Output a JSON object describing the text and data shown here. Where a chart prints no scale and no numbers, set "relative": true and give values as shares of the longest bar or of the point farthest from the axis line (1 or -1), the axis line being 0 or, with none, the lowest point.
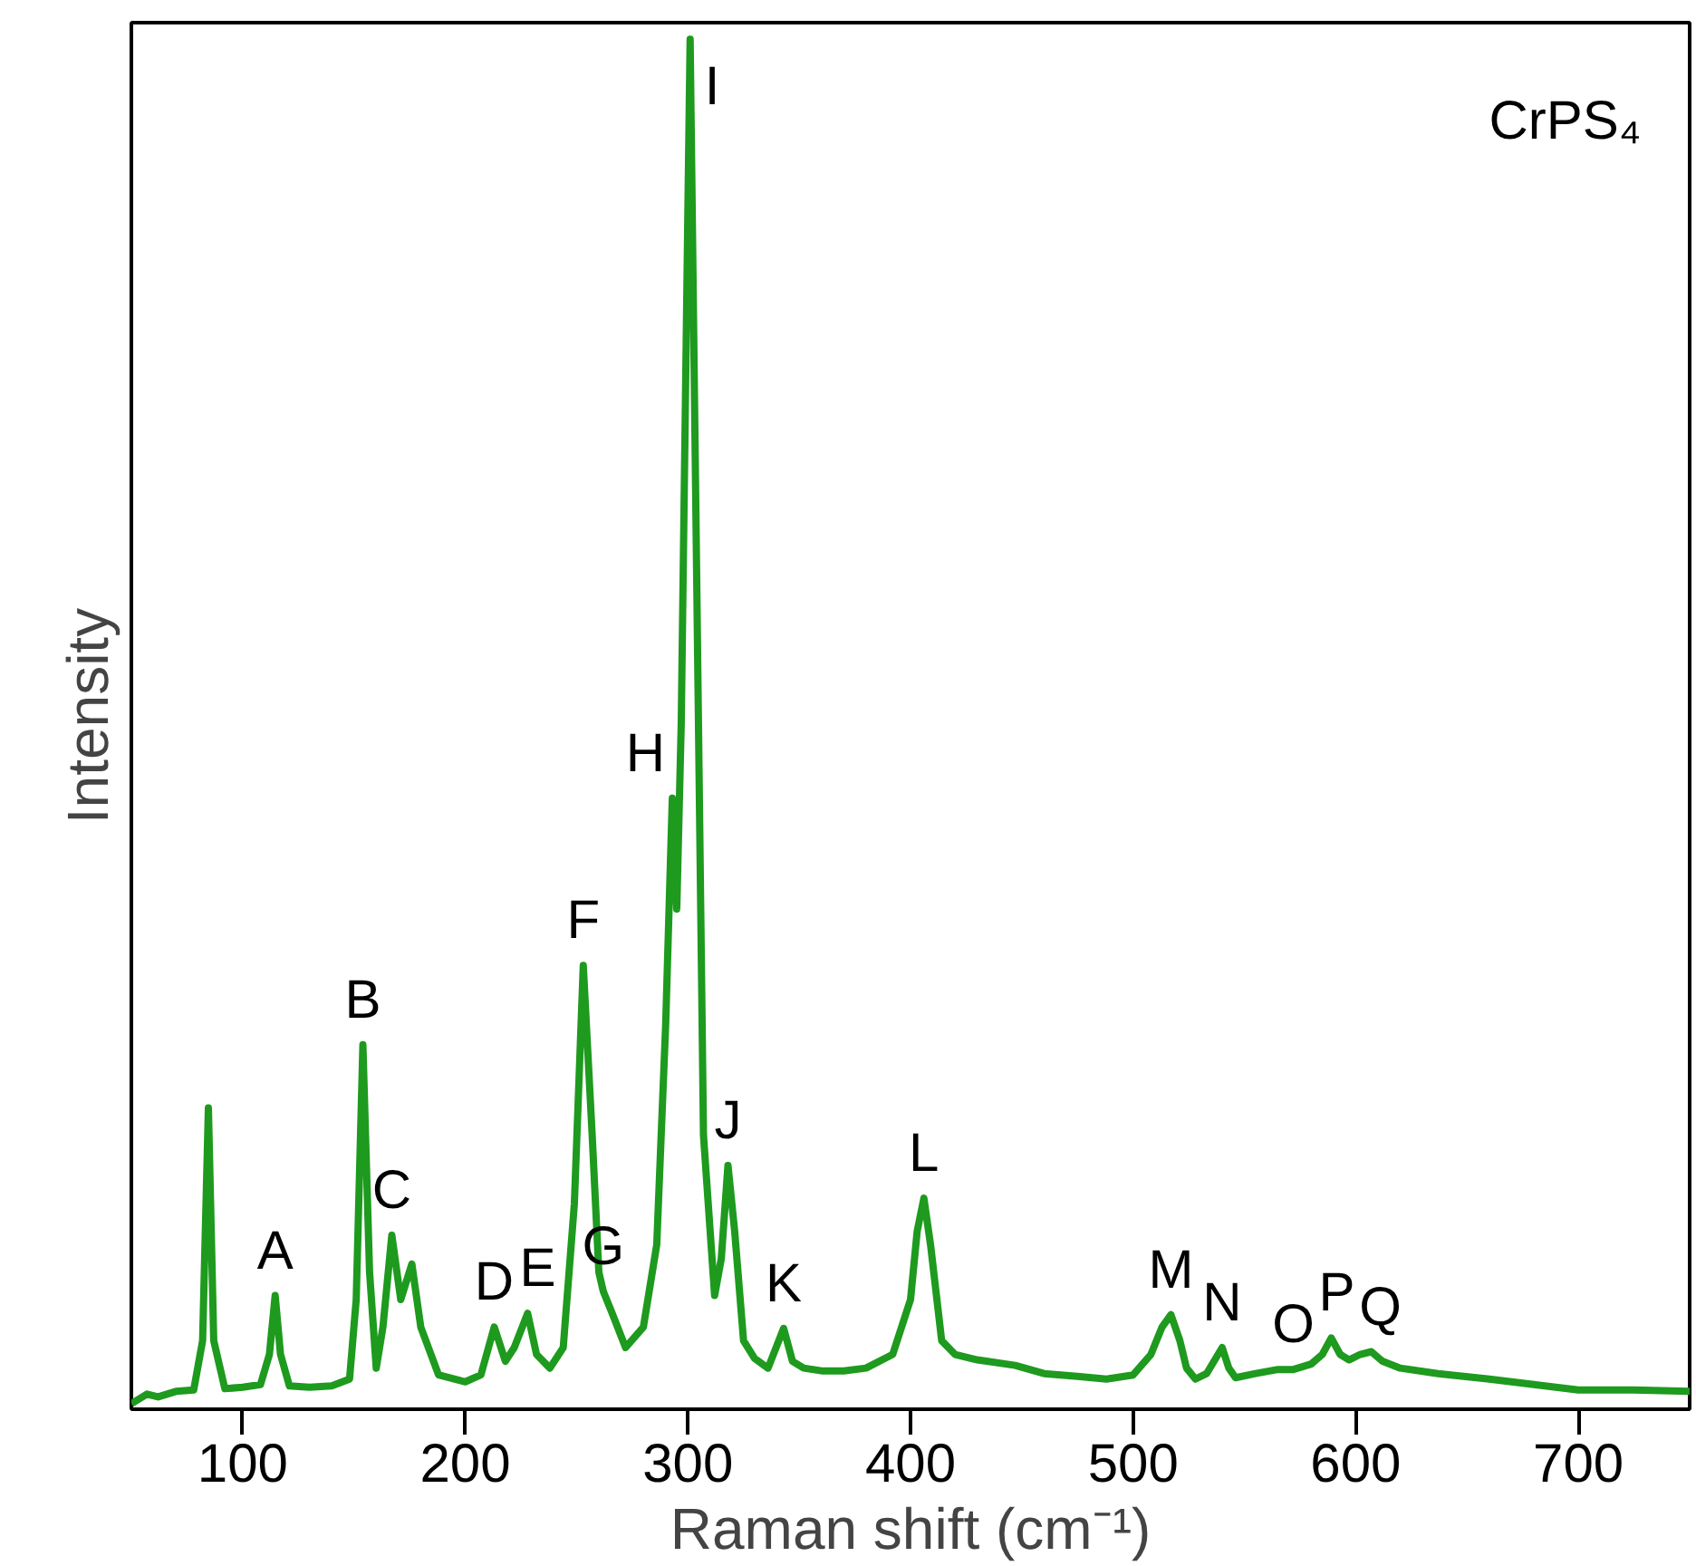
{
  "chart_data": {
    "type": "line",
    "relative": true,
    "xlabel": "Raman shift (cm⁻¹)",
    "ylabel": "Intensity",
    "xlim": [
      50,
      750
    ],
    "xticks": [
      100,
      200,
      300,
      400,
      500,
      600,
      700
    ],
    "grid": false,
    "marker": "none",
    "line_style": "solid",
    "x": [
      50,
      57,
      62,
      70,
      78,
      82,
      84.6,
      87,
      92,
      100,
      108,
      112,
      114.6,
      117,
      121,
      130,
      140,
      148,
      151,
      154,
      157,
      160,
      163,
      167,
      171,
      176,
      180,
      188,
      200,
      207,
      213,
      218,
      222,
      228,
      232,
      238,
      244,
      249,
      253,
      257,
      260,
      262,
      266,
      272,
      280,
      286,
      290,
      293,
      295,
      297,
      301,
      304,
      307,
      312,
      315,
      318,
      321,
      325,
      330,
      336,
      343,
      347,
      352,
      360,
      370,
      380,
      392,
      400,
      403,
      406,
      409,
      414,
      420,
      430,
      447,
      460,
      475,
      488,
      500,
      508,
      513,
      517,
      521,
      524,
      528,
      533,
      540,
      543,
      546,
      555,
      565,
      572,
      580,
      585,
      589,
      593,
      597,
      602,
      607,
      612,
      620,
      637,
      660,
      680,
      700,
      725,
      750
    ],
    "values": [
      0.004,
      0.011,
      0.009,
      0.013,
      0.014,
      0.05,
      0.22,
      0.05,
      0.015,
      0.016,
      0.018,
      0.04,
      0.083,
      0.04,
      0.017,
      0.016,
      0.017,
      0.022,
      0.08,
      0.266,
      0.1,
      0.03,
      0.06,
      0.127,
      0.08,
      0.106,
      0.06,
      0.025,
      0.02,
      0.025,
      0.06,
      0.035,
      0.045,
      0.07,
      0.04,
      0.03,
      0.045,
      0.15,
      0.324,
      0.2,
      0.1,
      0.086,
      0.07,
      0.045,
      0.06,
      0.12,
      0.28,
      0.446,
      0.365,
      0.5,
      1.0,
      0.6,
      0.2,
      0.083,
      0.11,
      0.178,
      0.13,
      0.05,
      0.037,
      0.03,
      0.059,
      0.035,
      0.03,
      0.028,
      0.028,
      0.03,
      0.04,
      0.08,
      0.13,
      0.154,
      0.12,
      0.05,
      0.04,
      0.036,
      0.032,
      0.026,
      0.024,
      0.022,
      0.025,
      0.04,
      0.06,
      0.069,
      0.05,
      0.03,
      0.022,
      0.026,
      0.045,
      0.03,
      0.023,
      0.026,
      0.029,
      0.029,
      0.033,
      0.04,
      0.052,
      0.04,
      0.036,
      0.04,
      0.042,
      0.035,
      0.03,
      0.026,
      0.022,
      0.018,
      0.014,
      0.014,
      0.013
    ],
    "color": "#1e9a1e",
    "annotations": [
      {
        "text": "A",
        "x": 114.6,
        "y": 0.083
      },
      {
        "text": "B",
        "x": 154,
        "y": 0.266
      },
      {
        "text": "C",
        "x": 167,
        "y": 0.127
      },
      {
        "text": "D",
        "x": 213,
        "y": 0.06
      },
      {
        "text": "E",
        "x": 228,
        "y": 0.07
      },
      {
        "text": "F",
        "x": 253,
        "y": 0.324
      },
      {
        "text": "G",
        "x": 262,
        "y": 0.086
      },
      {
        "text": "H",
        "x": 293,
        "y": 0.446
      },
      {
        "text": "I",
        "x": 301,
        "y": 1.0
      },
      {
        "text": "J",
        "x": 318,
        "y": 0.178
      },
      {
        "text": "K",
        "x": 343,
        "y": 0.059
      },
      {
        "text": "L",
        "x": 406,
        "y": 0.154
      },
      {
        "text": "M",
        "x": 517,
        "y": 0.069
      },
      {
        "text": "N",
        "x": 540,
        "y": 0.045
      },
      {
        "text": "O",
        "x": 572,
        "y": 0.029
      },
      {
        "text": "P",
        "x": 589,
        "y": 0.052
      },
      {
        "text": "Q",
        "x": 607,
        "y": 0.042
      },
      "CrPS₄"
    ]
  }
}
